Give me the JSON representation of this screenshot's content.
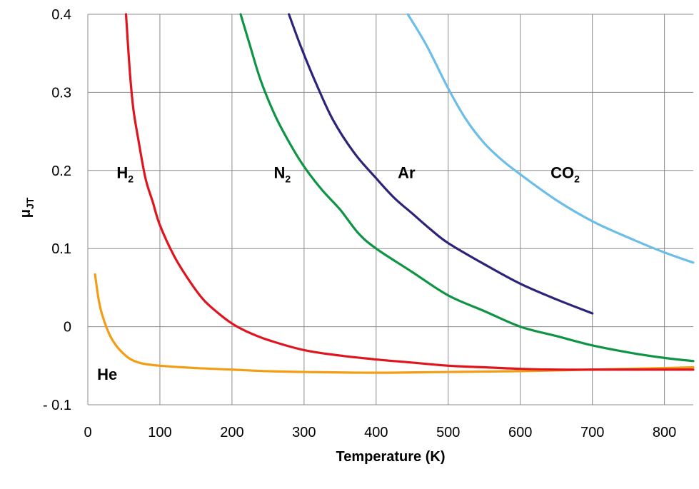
{
  "chart_data": {
    "type": "line",
    "xlabel": "Temperature (K)",
    "ylabel_main": "μ",
    "ylabel_sub": "JT",
    "xlim": [
      0,
      840
    ],
    "ylim": [
      -0.1,
      0.4
    ],
    "x_ticks": [
      0,
      100,
      200,
      300,
      400,
      500,
      600,
      700,
      800
    ],
    "x_tick_labels": [
      "0",
      "100",
      "200",
      "300",
      "400",
      "500",
      "600",
      "700",
      "800"
    ],
    "y_ticks": [
      -0.1,
      0,
      0.1,
      0.2,
      0.3,
      0.4
    ],
    "y_tick_labels": [
      "- 0.1",
      "0",
      "0.1",
      "0.2",
      "0.3",
      "0.4"
    ],
    "grid": true,
    "series": [
      {
        "name": "H2",
        "label_main": "H",
        "label_sub": "2",
        "color": "#e0141e",
        "label_pos": [
          40,
          0.19
        ],
        "points": [
          [
            53,
            0.4
          ],
          [
            58,
            0.33
          ],
          [
            63,
            0.28
          ],
          [
            70,
            0.24
          ],
          [
            80,
            0.19
          ],
          [
            90,
            0.16
          ],
          [
            100,
            0.13
          ],
          [
            120,
            0.09
          ],
          [
            140,
            0.06
          ],
          [
            160,
            0.035
          ],
          [
            180,
            0.018
          ],
          [
            200,
            0.004
          ],
          [
            220,
            -0.006
          ],
          [
            250,
            -0.017
          ],
          [
            300,
            -0.03
          ],
          [
            350,
            -0.037
          ],
          [
            400,
            -0.042
          ],
          [
            450,
            -0.046
          ],
          [
            500,
            -0.05
          ],
          [
            550,
            -0.052
          ],
          [
            600,
            -0.054
          ],
          [
            650,
            -0.055
          ],
          [
            700,
            -0.055
          ],
          [
            750,
            -0.055
          ],
          [
            800,
            -0.055
          ],
          [
            840,
            -0.055
          ]
        ]
      },
      {
        "name": "N2",
        "label_main": "N",
        "label_sub": "2",
        "color": "#0e9444",
        "label_pos": [
          258,
          0.19
        ],
        "points": [
          [
            212,
            0.4
          ],
          [
            225,
            0.36
          ],
          [
            240,
            0.315
          ],
          [
            260,
            0.27
          ],
          [
            280,
            0.235
          ],
          [
            300,
            0.205
          ],
          [
            325,
            0.175
          ],
          [
            350,
            0.15
          ],
          [
            375,
            0.12
          ],
          [
            400,
            0.1
          ],
          [
            450,
            0.07
          ],
          [
            500,
            0.04
          ],
          [
            550,
            0.02
          ],
          [
            600,
            0.0
          ],
          [
            650,
            -0.012
          ],
          [
            700,
            -0.024
          ],
          [
            750,
            -0.033
          ],
          [
            800,
            -0.04
          ],
          [
            840,
            -0.044
          ]
        ]
      },
      {
        "name": "Ar",
        "label_main": "Ar",
        "label_sub": "",
        "color": "#2b2479",
        "label_pos": [
          430,
          0.19
        ],
        "points": [
          [
            279,
            0.4
          ],
          [
            295,
            0.36
          ],
          [
            315,
            0.315
          ],
          [
            340,
            0.265
          ],
          [
            370,
            0.222
          ],
          [
            400,
            0.19
          ],
          [
            425,
            0.165
          ],
          [
            450,
            0.145
          ],
          [
            475,
            0.125
          ],
          [
            500,
            0.107
          ],
          [
            550,
            0.08
          ],
          [
            600,
            0.055
          ],
          [
            650,
            0.035
          ],
          [
            700,
            0.017
          ]
        ]
      },
      {
        "name": "CO2",
        "label_main": "CO",
        "label_sub": "2",
        "color": "#6cbde8",
        "label_pos": [
          642,
          0.19
        ],
        "points": [
          [
            444,
            0.4
          ],
          [
            470,
            0.36
          ],
          [
            500,
            0.305
          ],
          [
            525,
            0.265
          ],
          [
            550,
            0.235
          ],
          [
            575,
            0.213
          ],
          [
            600,
            0.195
          ],
          [
            650,
            0.162
          ],
          [
            700,
            0.135
          ],
          [
            750,
            0.114
          ],
          [
            800,
            0.095
          ],
          [
            840,
            0.082
          ]
        ]
      },
      {
        "name": "He",
        "label_main": "He",
        "label_sub": "",
        "color": "#f29d13",
        "label_pos": [
          13,
          -0.068
        ],
        "points": [
          [
            10,
            0.067
          ],
          [
            15,
            0.035
          ],
          [
            20,
            0.015
          ],
          [
            30,
            -0.01
          ],
          [
            40,
            -0.025
          ],
          [
            50,
            -0.035
          ],
          [
            60,
            -0.042
          ],
          [
            75,
            -0.047
          ],
          [
            100,
            -0.05
          ],
          [
            150,
            -0.053
          ],
          [
            200,
            -0.055
          ],
          [
            250,
            -0.057
          ],
          [
            300,
            -0.058
          ],
          [
            400,
            -0.059
          ],
          [
            500,
            -0.058
          ],
          [
            600,
            -0.057
          ],
          [
            700,
            -0.055
          ],
          [
            800,
            -0.053
          ],
          [
            840,
            -0.052
          ]
        ]
      }
    ]
  }
}
